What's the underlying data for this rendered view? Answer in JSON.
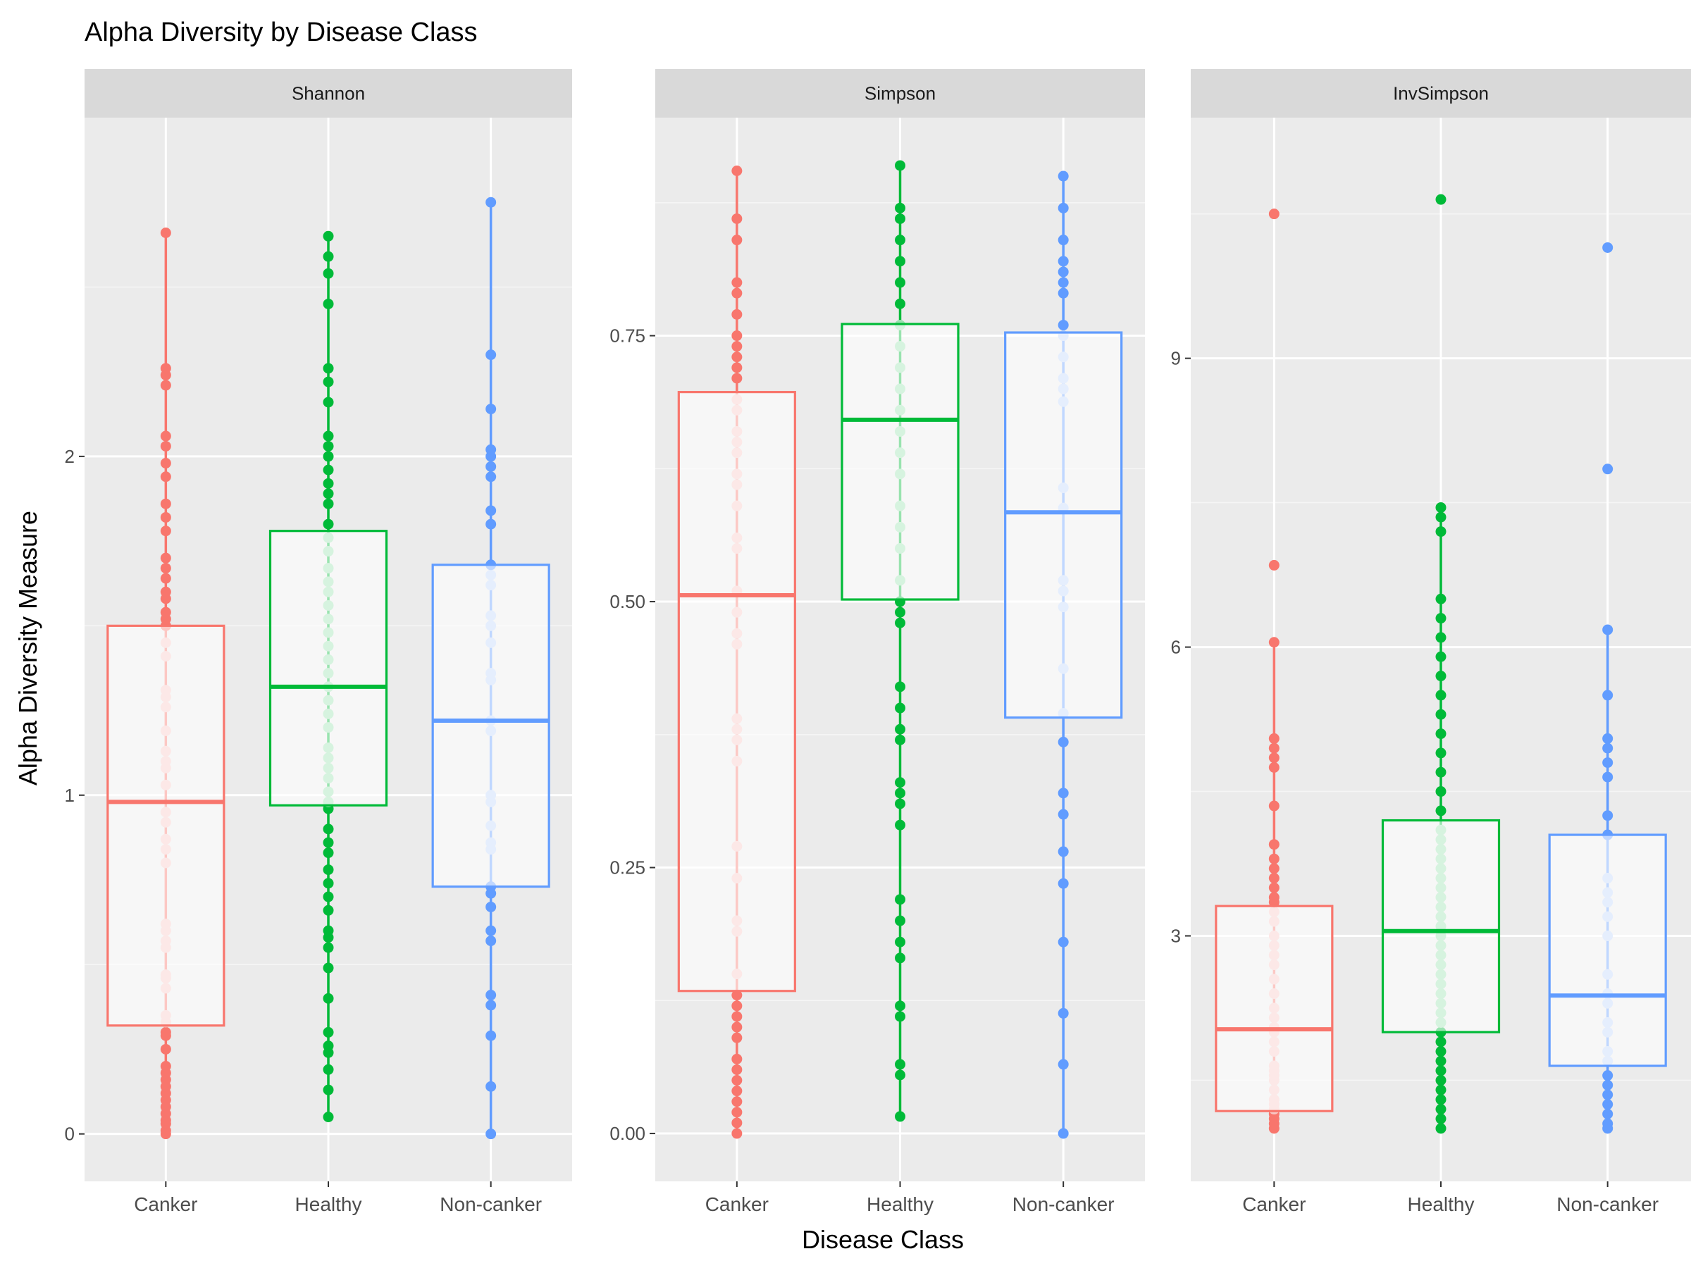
{
  "chart_data": {
    "type": "boxplot",
    "title": "Alpha Diversity by Disease Class",
    "xlabel": "Disease Class",
    "ylabel": "Alpha Diversity Measure",
    "categories": [
      "Canker",
      "Healthy",
      "Non-canker"
    ],
    "colors": {
      "Canker": "#F8766D",
      "Healthy": "#00BA38",
      "Non-canker": "#619CFF"
    },
    "panels": [
      {
        "name": "Shannon",
        "ylim": [
          -0.14,
          3.0
        ],
        "yticks": [
          0,
          1,
          2
        ],
        "ytick_labels": [
          "0",
          "1",
          "2"
        ],
        "boxes": [
          {
            "category": "Canker",
            "min": 0.0,
            "q1": 0.32,
            "median": 0.98,
            "q3": 1.5,
            "max": 2.66,
            "points": [
              0.0,
              0.01,
              0.03,
              0.04,
              0.06,
              0.08,
              0.1,
              0.12,
              0.14,
              0.16,
              0.18,
              0.2,
              0.25,
              0.29,
              0.3,
              0.33,
              0.35,
              0.43,
              0.46,
              0.47,
              0.55,
              0.57,
              0.6,
              0.62,
              0.8,
              0.84,
              0.87,
              0.92,
              0.95,
              1.03,
              1.08,
              1.1,
              1.13,
              1.19,
              1.26,
              1.29,
              1.31,
              1.41,
              1.45,
              1.5,
              1.52,
              1.54,
              1.58,
              1.6,
              1.64,
              1.67,
              1.7,
              1.78,
              1.82,
              1.86,
              1.94,
              1.98,
              2.03,
              2.06,
              2.21,
              2.24,
              2.26,
              2.66
            ]
          },
          {
            "category": "Healthy",
            "min": 0.05,
            "q1": 0.97,
            "median": 1.32,
            "q3": 1.78,
            "max": 2.65,
            "points": [
              0.05,
              0.13,
              0.19,
              0.24,
              0.26,
              0.3,
              0.4,
              0.49,
              0.55,
              0.58,
              0.6,
              0.66,
              0.7,
              0.74,
              0.78,
              0.83,
              0.86,
              0.9,
              0.96,
              0.98,
              1.01,
              1.05,
              1.08,
              1.11,
              1.14,
              1.2,
              1.24,
              1.28,
              1.32,
              1.36,
              1.4,
              1.44,
              1.48,
              1.52,
              1.56,
              1.6,
              1.63,
              1.67,
              1.72,
              1.76,
              1.8,
              1.86,
              1.89,
              1.92,
              1.96,
              2.0,
              2.03,
              2.06,
              2.16,
              2.22,
              2.26,
              2.45,
              2.54,
              2.59,
              2.65
            ]
          },
          {
            "category": "Non-canker",
            "min": 0.0,
            "q1": 0.73,
            "median": 1.22,
            "q3": 1.68,
            "max": 2.75,
            "points": [
              0.0,
              0.14,
              0.29,
              0.38,
              0.41,
              0.57,
              0.6,
              0.67,
              0.71,
              0.73,
              0.84,
              0.86,
              0.91,
              0.98,
              1.0,
              1.19,
              1.22,
              1.34,
              1.36,
              1.45,
              1.5,
              1.53,
              1.62,
              1.65,
              1.68,
              1.8,
              1.84,
              1.94,
              1.97,
              2.0,
              2.02,
              2.14,
              2.3,
              2.75
            ]
          }
        ]
      },
      {
        "name": "Simpson",
        "ylim": [
          -0.045,
          0.955
        ],
        "yticks": [
          0,
          0.25,
          0.5,
          0.75
        ],
        "ytick_labels": [
          "0.00",
          "0.25",
          "0.50",
          "0.75"
        ],
        "boxes": [
          {
            "category": "Canker",
            "min": 0.0,
            "q1": 0.134,
            "median": 0.506,
            "q3": 0.697,
            "max": 0.905,
            "points": [
              0.0,
              0.01,
              0.02,
              0.03,
              0.04,
              0.05,
              0.06,
              0.07,
              0.09,
              0.1,
              0.11,
              0.12,
              0.13,
              0.15,
              0.19,
              0.2,
              0.24,
              0.27,
              0.35,
              0.37,
              0.38,
              0.39,
              0.46,
              0.47,
              0.49,
              0.51,
              0.55,
              0.56,
              0.59,
              0.61,
              0.62,
              0.64,
              0.65,
              0.66,
              0.68,
              0.69,
              0.71,
              0.72,
              0.73,
              0.74,
              0.75,
              0.77,
              0.79,
              0.8,
              0.84,
              0.86,
              0.905
            ]
          },
          {
            "category": "Healthy",
            "min": 0.016,
            "q1": 0.502,
            "median": 0.671,
            "q3": 0.761,
            "max": 0.91,
            "points": [
              0.016,
              0.055,
              0.065,
              0.11,
              0.12,
              0.165,
              0.18,
              0.2,
              0.22,
              0.29,
              0.31,
              0.32,
              0.33,
              0.37,
              0.38,
              0.4,
              0.42,
              0.48,
              0.49,
              0.5,
              0.52,
              0.55,
              0.57,
              0.59,
              0.62,
              0.64,
              0.66,
              0.68,
              0.7,
              0.72,
              0.74,
              0.76,
              0.78,
              0.8,
              0.82,
              0.84,
              0.86,
              0.87,
              0.91
            ]
          },
          {
            "category": "Non-canker",
            "min": 0.0,
            "q1": 0.391,
            "median": 0.584,
            "q3": 0.753,
            "max": 0.9,
            "points": [
              0.0,
              0.065,
              0.113,
              0.18,
              0.235,
              0.265,
              0.3,
              0.32,
              0.368,
              0.395,
              0.437,
              0.495,
              0.51,
              0.52,
              0.588,
              0.607,
              0.688,
              0.7,
              0.71,
              0.73,
              0.75,
              0.76,
              0.79,
              0.8,
              0.81,
              0.82,
              0.84,
              0.87,
              0.9
            ]
          }
        ]
      },
      {
        "name": "InvSimpson",
        "ylim": [
          0.45,
          11.5
        ],
        "yticks": [
          3,
          6,
          9
        ],
        "ytick_labels": [
          "3",
          "6",
          "9"
        ],
        "boxes": [
          {
            "category": "Canker",
            "min": 1.0,
            "q1": 1.18,
            "median": 2.03,
            "q3": 3.31,
            "max": 6.05,
            "points": [
              1.0,
              1.05,
              1.1,
              1.15,
              1.2,
              1.25,
              1.3,
              1.4,
              1.5,
              1.55,
              1.6,
              1.65,
              1.8,
              1.9,
              2.0,
              2.05,
              2.15,
              2.25,
              2.4,
              2.55,
              2.7,
              2.8,
              2.9,
              3.0,
              3.15,
              3.25,
              3.35,
              3.4,
              3.5,
              3.6,
              3.7,
              3.8,
              3.95,
              4.35,
              4.75,
              4.85,
              4.95,
              5.05,
              6.05,
              6.85,
              10.5
            ]
          },
          {
            "category": "Healthy",
            "min": 1.0,
            "q1": 2.0,
            "median": 3.05,
            "q3": 4.2,
            "max": 7.45,
            "points": [
              1.0,
              1.1,
              1.2,
              1.3,
              1.4,
              1.5,
              1.6,
              1.7,
              1.8,
              1.9,
              2.0,
              2.1,
              2.2,
              2.3,
              2.4,
              2.5,
              2.6,
              2.7,
              2.8,
              2.9,
              3.0,
              3.1,
              3.2,
              3.3,
              3.4,
              3.5,
              3.6,
              3.7,
              3.8,
              3.9,
              4.0,
              4.1,
              4.3,
              4.5,
              4.7,
              4.9,
              5.1,
              5.3,
              5.5,
              5.7,
              5.9,
              6.1,
              6.3,
              6.5,
              7.2,
              7.35,
              7.45,
              10.65
            ]
          },
          {
            "category": "Non-canker",
            "min": 1.0,
            "q1": 1.65,
            "median": 2.38,
            "q3": 4.05,
            "max": 6.18,
            "points": [
              1.0,
              1.05,
              1.15,
              1.25,
              1.35,
              1.45,
              1.55,
              1.7,
              1.8,
              2.0,
              2.1,
              2.3,
              2.4,
              2.6,
              3.0,
              3.2,
              3.35,
              3.45,
              3.6,
              4.05,
              4.25,
              4.65,
              4.8,
              4.95,
              5.05,
              5.5,
              6.18,
              7.85,
              10.15
            ]
          }
        ]
      }
    ]
  }
}
